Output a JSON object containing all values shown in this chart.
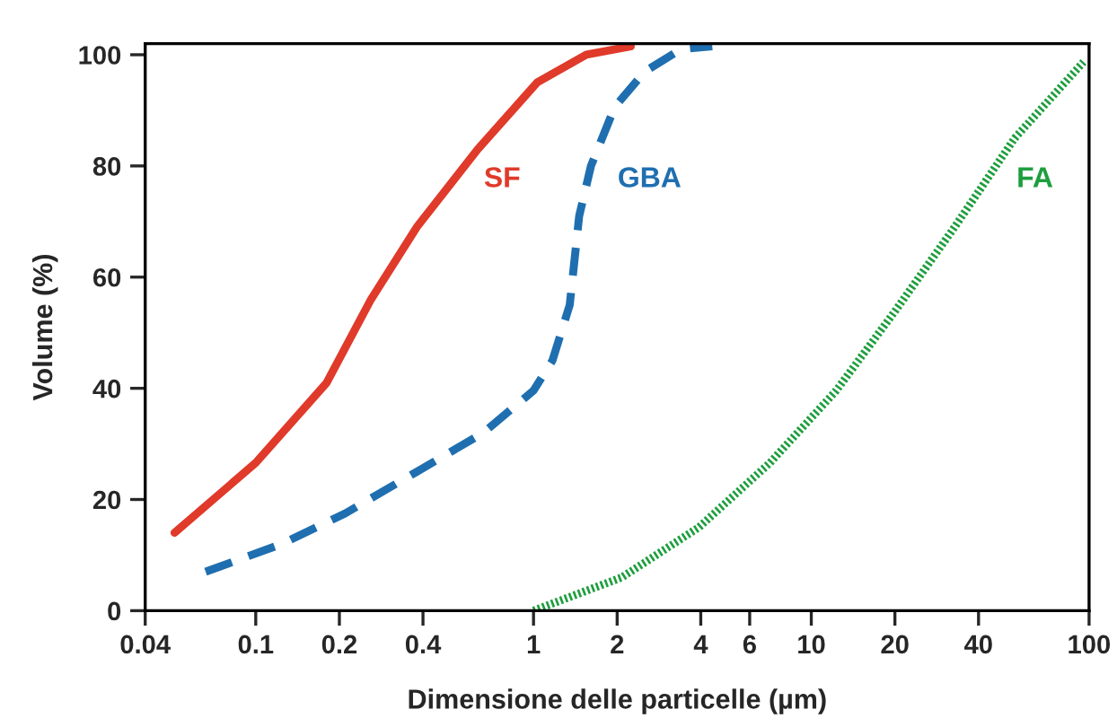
{
  "chart_data": {
    "type": "line",
    "xlabel": "Dimensione delle particelle (µm)",
    "ylabel": "Volume (%)",
    "log": "x",
    "xlim": [
      0.04,
      100
    ],
    "ylim": [
      0,
      102
    ],
    "xticks": [
      0.04,
      0.1,
      0.2,
      0.4,
      1,
      2,
      4,
      6,
      10,
      20,
      40,
      100
    ],
    "yticks": [
      0,
      20,
      40,
      60,
      80,
      100
    ],
    "grid": false,
    "legend": false,
    "marker": "none",
    "series": [
      {
        "name": "SF",
        "color": "#e03a2a",
        "line_style": "solid",
        "x": [
          0.051,
          0.1,
          0.18,
          0.26,
          0.38,
          0.63,
          1.03,
          1.55,
          2.24
        ],
        "values": [
          14,
          26.6,
          41,
          56,
          69,
          83,
          95,
          100,
          101.5
        ]
      },
      {
        "name": "GBA",
        "color": "#1f6fb0",
        "line_style": "dashed",
        "x": [
          0.066,
          0.124,
          0.21,
          0.38,
          0.66,
          1.0,
          1.17,
          1.35,
          1.46,
          1.61,
          1.96,
          2.52,
          3.4,
          4.4
        ],
        "values": [
          7,
          12,
          17.5,
          25,
          32,
          39.6,
          45,
          55,
          71,
          80,
          90.6,
          97,
          101,
          101.5
        ]
      },
      {
        "name": "FA",
        "color": "#1e9e3e",
        "line_style": "dotted",
        "x": [
          1.0,
          2.08,
          3.94,
          7.1,
          12.3,
          20.1,
          32.8,
          54,
          95.5
        ],
        "values": [
          0,
          6,
          15,
          26.6,
          39.6,
          54,
          69,
          85,
          98.7
        ]
      }
    ]
  }
}
